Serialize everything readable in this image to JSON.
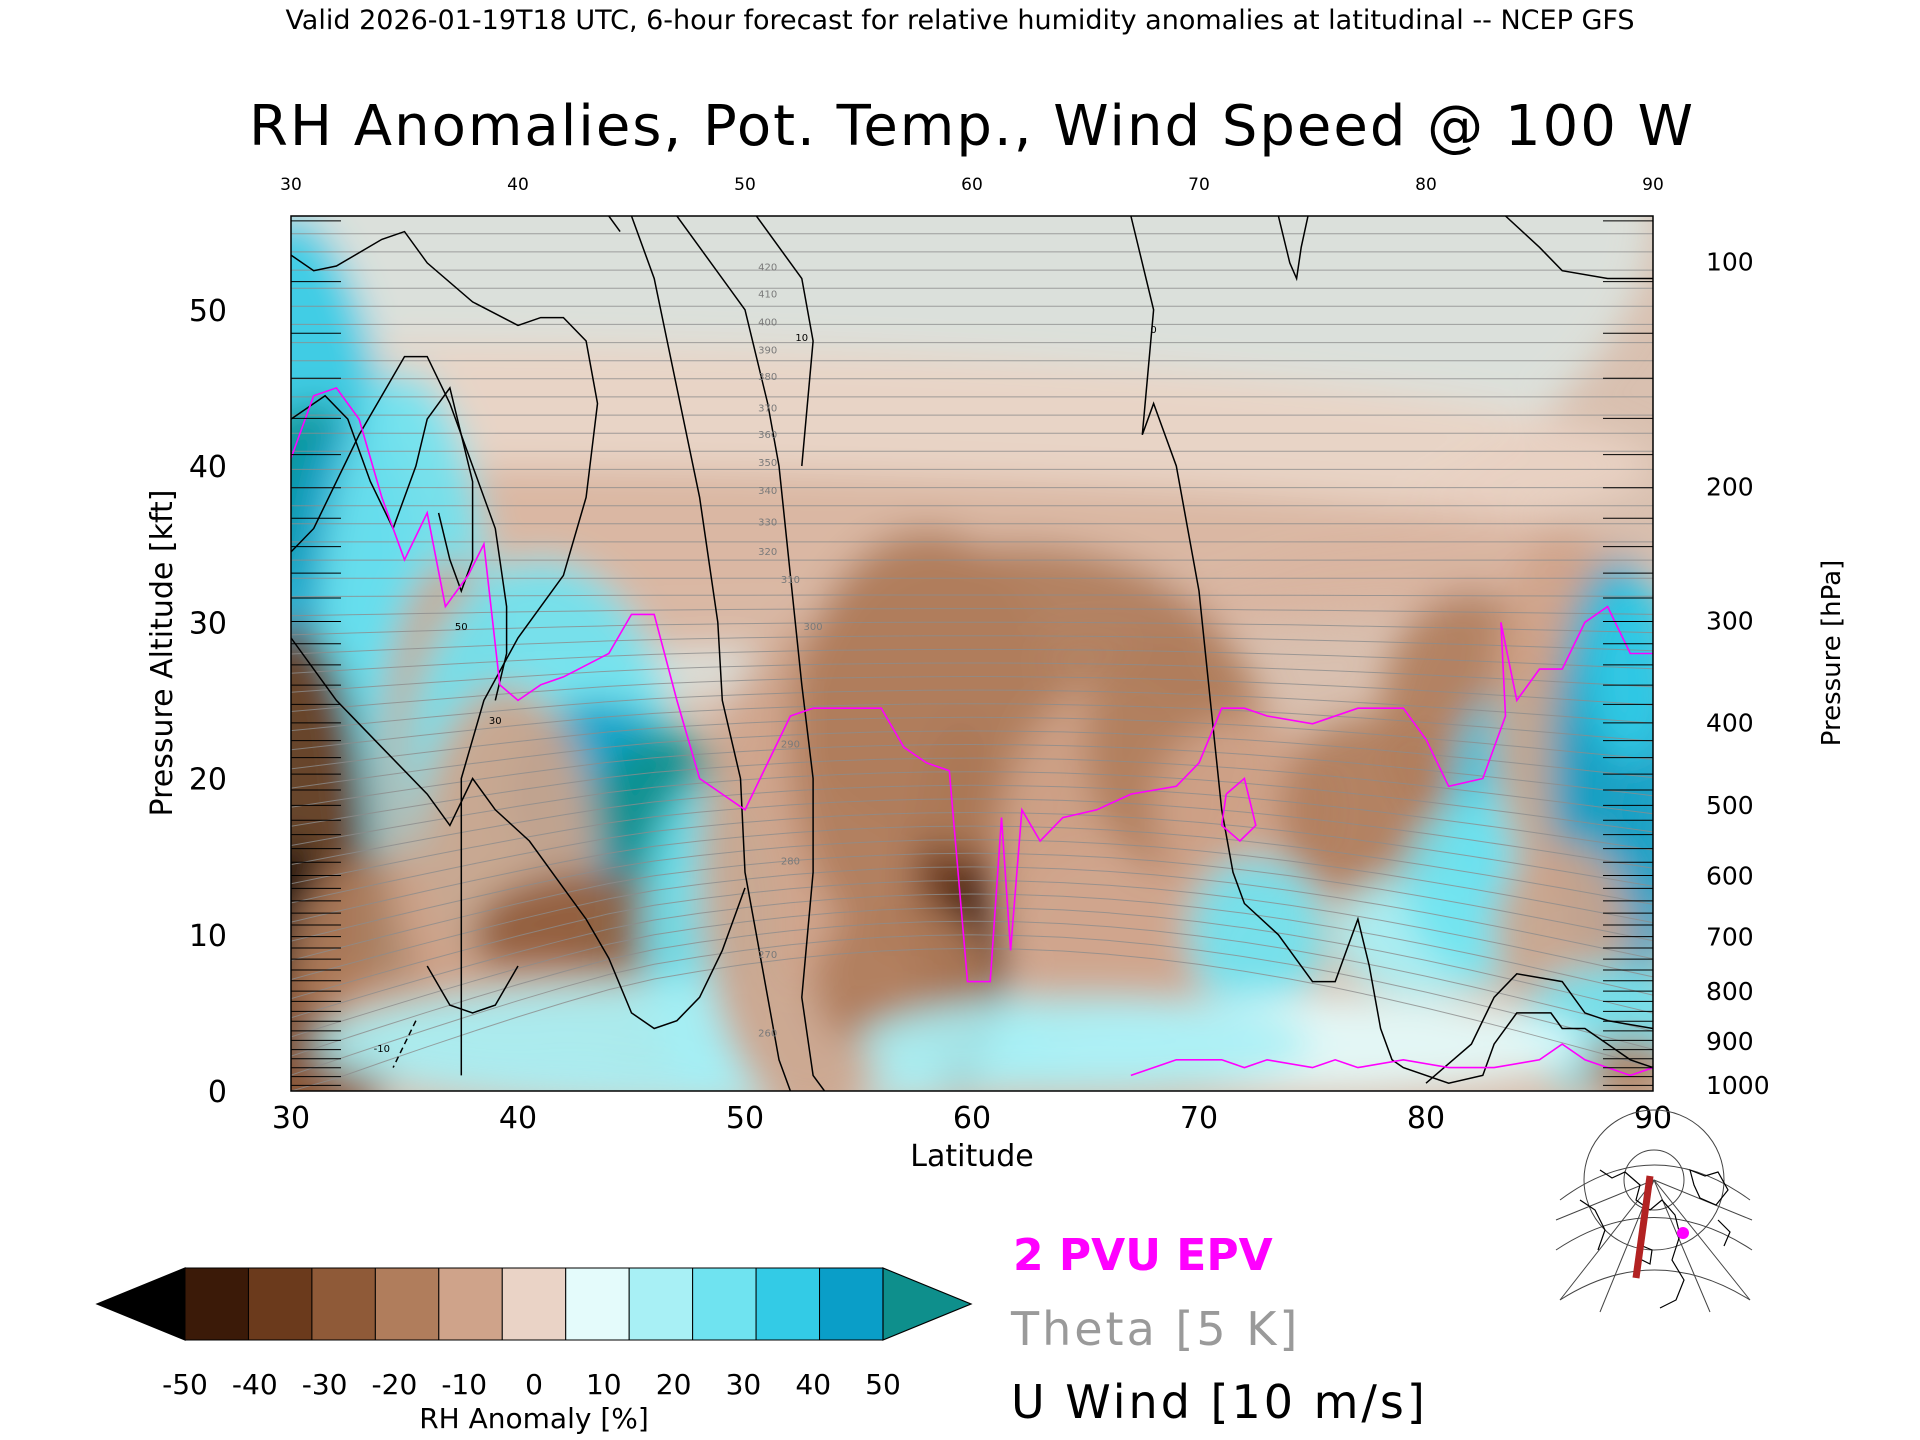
{
  "header": "Valid 2026-01-19T18 UTC, 6-hour forecast for relative humidity anomalies at latitudinal -- NCEP GFS",
  "chart_data": {
    "type": "heatmap",
    "title": "RH Anomalies, Pot. Temp., Wind Speed @ 100 W",
    "xlabel": "Latitude",
    "ylabel": "Pressure Altitude [kft]",
    "ylabel_right": "Pressure [hPa]",
    "xlim": [
      30,
      90
    ],
    "ylim": [
      0,
      56
    ],
    "x_ticks": [
      "30",
      "40",
      "50",
      "60",
      "70",
      "80",
      "90"
    ],
    "y_ticks": [
      "0",
      "10",
      "20",
      "30",
      "40",
      "50"
    ],
    "pressure_ticks": [
      {
        "label": "100",
        "kft": 53.1
      },
      {
        "label": "200",
        "kft": 38.7
      },
      {
        "label": "300",
        "kft": 30.1
      },
      {
        "label": "400",
        "kft": 23.6
      },
      {
        "label": "500",
        "kft": 18.3
      },
      {
        "label": "600",
        "kft": 13.8
      },
      {
        "label": "700",
        "kft": 9.9
      },
      {
        "label": "800",
        "kft": 6.4
      },
      {
        "label": "900",
        "kft": 3.2
      },
      {
        "label": "1000",
        "kft": 0.4
      }
    ],
    "colorbar": {
      "label": "RH Anomaly [%]",
      "ticks": [
        "-50",
        "-40",
        "-30",
        "-20",
        "-10",
        "0",
        "10",
        "20",
        "30",
        "40",
        "50"
      ],
      "colors": [
        "#000000",
        "#3b1a08",
        "#6b3a1c",
        "#8f5a38",
        "#b07d5c",
        "#cfa38a",
        "#ead3c6",
        "#e4fbfb",
        "#a8f0f5",
        "#6fe3f0",
        "#33cbe6",
        "#0a9ec8",
        "#0e8f8c"
      ]
    },
    "theta_labels": [
      "420",
      "410",
      "400",
      "390",
      "380",
      "370",
      "360",
      "350",
      "340",
      "330",
      "320",
      "310",
      "300",
      "290",
      "280",
      "270",
      "260"
    ],
    "wind_labels": [
      "0",
      "10",
      "30",
      "50",
      "-10"
    ],
    "legend": [
      {
        "label": "2 PVU EPV",
        "color": "#ff00ff"
      },
      {
        "label": "Theta [5 K]",
        "color": "#9a9a9a"
      },
      {
        "label": "U Wind [10 m/s]",
        "color": "#000000"
      }
    ],
    "epv_2pvu": [
      [
        30,
        40.5
      ],
      [
        31,
        44.5
      ],
      [
        32,
        45
      ],
      [
        33,
        43
      ],
      [
        34,
        38
      ],
      [
        35,
        34
      ],
      [
        36,
        37
      ],
      [
        36.8,
        31
      ],
      [
        37.8,
        33
      ],
      [
        38.5,
        35
      ],
      [
        39.2,
        26
      ],
      [
        40,
        25
      ],
      [
        41,
        26
      ],
      [
        42,
        26.5
      ],
      [
        44,
        28
      ],
      [
        45,
        30.5
      ],
      [
        46,
        30.5
      ],
      [
        47,
        25
      ],
      [
        48,
        20
      ],
      [
        49,
        19
      ],
      [
        50,
        18
      ],
      [
        51,
        21
      ],
      [
        52,
        24
      ],
      [
        53,
        24.5
      ],
      [
        55,
        24.5
      ],
      [
        56,
        24.5
      ],
      [
        57,
        22
      ],
      [
        58,
        21
      ],
      [
        59,
        20.5
      ],
      [
        59.8,
        7
      ],
      [
        60.8,
        7
      ],
      [
        61.3,
        17.5
      ],
      [
        61.7,
        9
      ],
      [
        62.2,
        18
      ],
      [
        63,
        16
      ],
      [
        64,
        17.5
      ],
      [
        65.5,
        18
      ],
      [
        67,
        19
      ],
      [
        69,
        19.5
      ],
      [
        70,
        21
      ],
      [
        71,
        24.5
      ],
      [
        72,
        24.5
      ],
      [
        73,
        24
      ],
      [
        75,
        23.5
      ],
      [
        77,
        24.5
      ],
      [
        79,
        24.5
      ],
      [
        80,
        22.5
      ],
      [
        81,
        19.5
      ],
      [
        82.5,
        20
      ],
      [
        83.5,
        24
      ],
      [
        83.3,
        30
      ],
      [
        84,
        25
      ],
      [
        85,
        27
      ],
      [
        86,
        27
      ],
      [
        87,
        30
      ],
      [
        88,
        31
      ],
      [
        89,
        28
      ],
      [
        90,
        28
      ]
    ],
    "epv_ring": [
      [
        71.2,
        19
      ],
      [
        72,
        20
      ],
      [
        72.5,
        17
      ],
      [
        71.8,
        16
      ],
      [
        71,
        17
      ],
      [
        71.2,
        19
      ]
    ],
    "epv_low": [
      [
        67,
        1
      ],
      [
        69,
        2
      ],
      [
        71,
        2
      ],
      [
        72,
        1.5
      ],
      [
        73,
        2
      ],
      [
        75,
        1.5
      ],
      [
        76,
        2
      ],
      [
        77,
        1.5
      ],
      [
        79,
        2
      ],
      [
        81,
        1.5
      ],
      [
        83,
        1.5
      ],
      [
        85,
        2
      ],
      [
        86,
        3
      ],
      [
        87,
        2
      ],
      [
        89,
        1
      ],
      [
        90,
        1.5
      ]
    ],
    "wind_contours": [
      [
        [
          30,
          53.5
        ],
        [
          31,
          52.5
        ],
        [
          32,
          52.8
        ],
        [
          34,
          54.5
        ],
        [
          35,
          55
        ],
        [
          36,
          53
        ],
        [
          38,
          50.5
        ],
        [
          40,
          49
        ],
        [
          41,
          49.5
        ],
        [
          42,
          49.5
        ],
        [
          43,
          48
        ],
        [
          43.5,
          44
        ],
        [
          43,
          38
        ],
        [
          42,
          33
        ],
        [
          40,
          29
        ],
        [
          38.5,
          25
        ],
        [
          37.5,
          20
        ],
        [
          37.5,
          14
        ],
        [
          37.5,
          8
        ],
        [
          37.5,
          1
        ]
      ],
      [
        [
          30,
          34.5
        ],
        [
          31,
          36
        ],
        [
          32,
          39
        ],
        [
          33,
          42
        ],
        [
          34,
          44.5
        ],
        [
          35,
          47
        ],
        [
          36,
          47
        ],
        [
          37,
          44
        ],
        [
          38,
          40
        ],
        [
          39,
          36
        ],
        [
          39.5,
          31
        ],
        [
          39.5,
          28
        ],
        [
          39,
          25
        ]
      ],
      [
        [
          30,
          43
        ],
        [
          31.5,
          44.5
        ],
        [
          32.5,
          43
        ],
        [
          33.5,
          39
        ],
        [
          34.5,
          36
        ],
        [
          35.5,
          40
        ],
        [
          36,
          43
        ],
        [
          37,
          45
        ],
        [
          38,
          39
        ],
        [
          38,
          34
        ],
        [
          37.5,
          32
        ],
        [
          37,
          34
        ],
        [
          36.5,
          37
        ]
      ],
      [
        [
          30,
          29
        ],
        [
          32,
          25
        ],
        [
          34,
          22
        ],
        [
          36,
          19
        ],
        [
          37,
          17
        ],
        [
          38,
          20
        ],
        [
          39,
          18
        ],
        [
          40.5,
          16
        ],
        [
          42,
          13
        ],
        [
          43,
          11
        ],
        [
          44,
          8.5
        ],
        [
          45,
          5
        ],
        [
          46,
          4
        ],
        [
          47,
          4.5
        ],
        [
          48,
          6
        ],
        [
          49,
          9
        ],
        [
          50,
          13
        ]
      ],
      [
        [
          36,
          8
        ],
        [
          37,
          5.5
        ],
        [
          38,
          5
        ],
        [
          39,
          5.5
        ],
        [
          40,
          8
        ]
      ],
      [
        [
          35.5,
          4.5
        ],
        [
          35,
          3
        ],
        [
          34.5,
          1.5
        ]
      ],
      [
        [
          44,
          56
        ],
        [
          44.5,
          55
        ]
      ],
      [
        [
          45,
          56
        ],
        [
          46,
          52
        ],
        [
          47,
          45
        ],
        [
          48,
          38
        ],
        [
          48.8,
          30
        ],
        [
          49,
          25
        ],
        [
          49.8,
          20
        ],
        [
          50,
          14
        ],
        [
          50.5,
          10
        ],
        [
          51,
          6
        ],
        [
          51.5,
          2
        ],
        [
          52,
          0
        ]
      ],
      [
        [
          47,
          56
        ],
        [
          50,
          50
        ],
        [
          51,
          44
        ],
        [
          51.5,
          40
        ],
        [
          52,
          33
        ],
        [
          52.5,
          26
        ],
        [
          53,
          20
        ],
        [
          53,
          14
        ],
        [
          52.5,
          6
        ],
        [
          53,
          1
        ],
        [
          53.5,
          0
        ]
      ],
      [
        [
          50.5,
          56
        ],
        [
          52.5,
          52
        ],
        [
          53,
          48
        ],
        [
          52.5,
          40
        ]
      ],
      [
        [
          67,
          56
        ],
        [
          68,
          50
        ],
        [
          67.5,
          42
        ],
        [
          68,
          44
        ],
        [
          69,
          40
        ],
        [
          70,
          32
        ],
        [
          70.5,
          25
        ],
        [
          71,
          18
        ],
        [
          71.5,
          14
        ],
        [
          72,
          12
        ],
        [
          73.5,
          10
        ],
        [
          75,
          7
        ],
        [
          76,
          7
        ],
        [
          76.5,
          9
        ],
        [
          77,
          11
        ],
        [
          77.5,
          8
        ],
        [
          78,
          4
        ],
        [
          78.5,
          2
        ],
        [
          79,
          1.5
        ],
        [
          81,
          0.5
        ],
        [
          82.5,
          1
        ],
        [
          83,
          3
        ],
        [
          84,
          5
        ],
        [
          85.5,
          5
        ],
        [
          86,
          4
        ],
        [
          87,
          4
        ],
        [
          88,
          3
        ],
        [
          89,
          2
        ],
        [
          90,
          1.5
        ]
      ],
      [
        [
          73.5,
          56
        ],
        [
          74,
          53
        ],
        [
          74.3,
          52
        ],
        [
          74.5,
          54
        ],
        [
          74.8,
          56
        ]
      ],
      [
        [
          83.5,
          56
        ],
        [
          85,
          54
        ],
        [
          86,
          52.5
        ],
        [
          88,
          52
        ],
        [
          90,
          52
        ]
      ],
      [
        [
          80,
          0.5
        ],
        [
          82,
          3
        ],
        [
          83,
          6
        ],
        [
          84,
          7.5
        ],
        [
          86,
          7
        ],
        [
          87,
          5
        ],
        [
          88,
          4.5
        ],
        [
          90,
          4
        ]
      ]
    ]
  }
}
